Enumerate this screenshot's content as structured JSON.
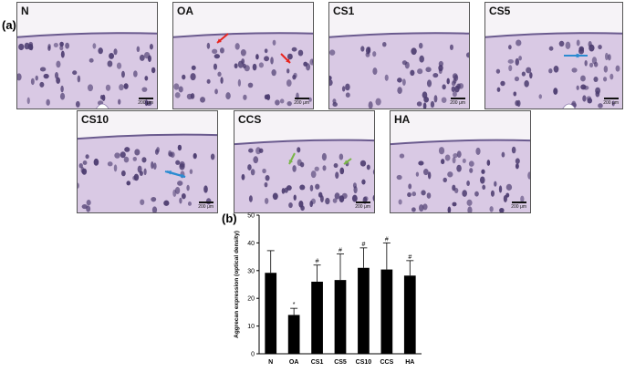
{
  "figure": {
    "panel_a_label": "(a)",
    "panel_b_label": "(b)",
    "scale_text": "200 μm",
    "panels": [
      {
        "label": "N"
      },
      {
        "label": "OA"
      },
      {
        "label": "CS1"
      },
      {
        "label": "CS5"
      },
      {
        "label": "CS10"
      },
      {
        "label": "CCS"
      },
      {
        "label": "HA"
      }
    ],
    "colors": {
      "tissue": "#d9c9e4",
      "cell": "#4a3a6e",
      "arrow_red": "#e8241e",
      "arrow_blue": "#2a8bd1",
      "arrow_green": "#7ab648"
    }
  },
  "chart_data": {
    "type": "bar",
    "categories": [
      "N",
      "OA",
      "CS1",
      "CS5",
      "CS10",
      "CCS",
      "HA"
    ],
    "values": [
      29.2,
      14.0,
      26.0,
      26.6,
      31.0,
      30.4,
      28.2
    ],
    "errors": [
      8.0,
      2.4,
      6.0,
      9.4,
      7.2,
      9.6,
      5.4
    ],
    "markers": [
      "",
      "*",
      "#",
      "#",
      "#",
      "#",
      "#"
    ],
    "ylabel": "Aggrecan expression (optical density)",
    "xlabel": "",
    "ylim": [
      0,
      50
    ],
    "yticks": [
      0,
      10,
      20,
      30,
      40,
      50
    ],
    "bar_color": "#000000"
  }
}
